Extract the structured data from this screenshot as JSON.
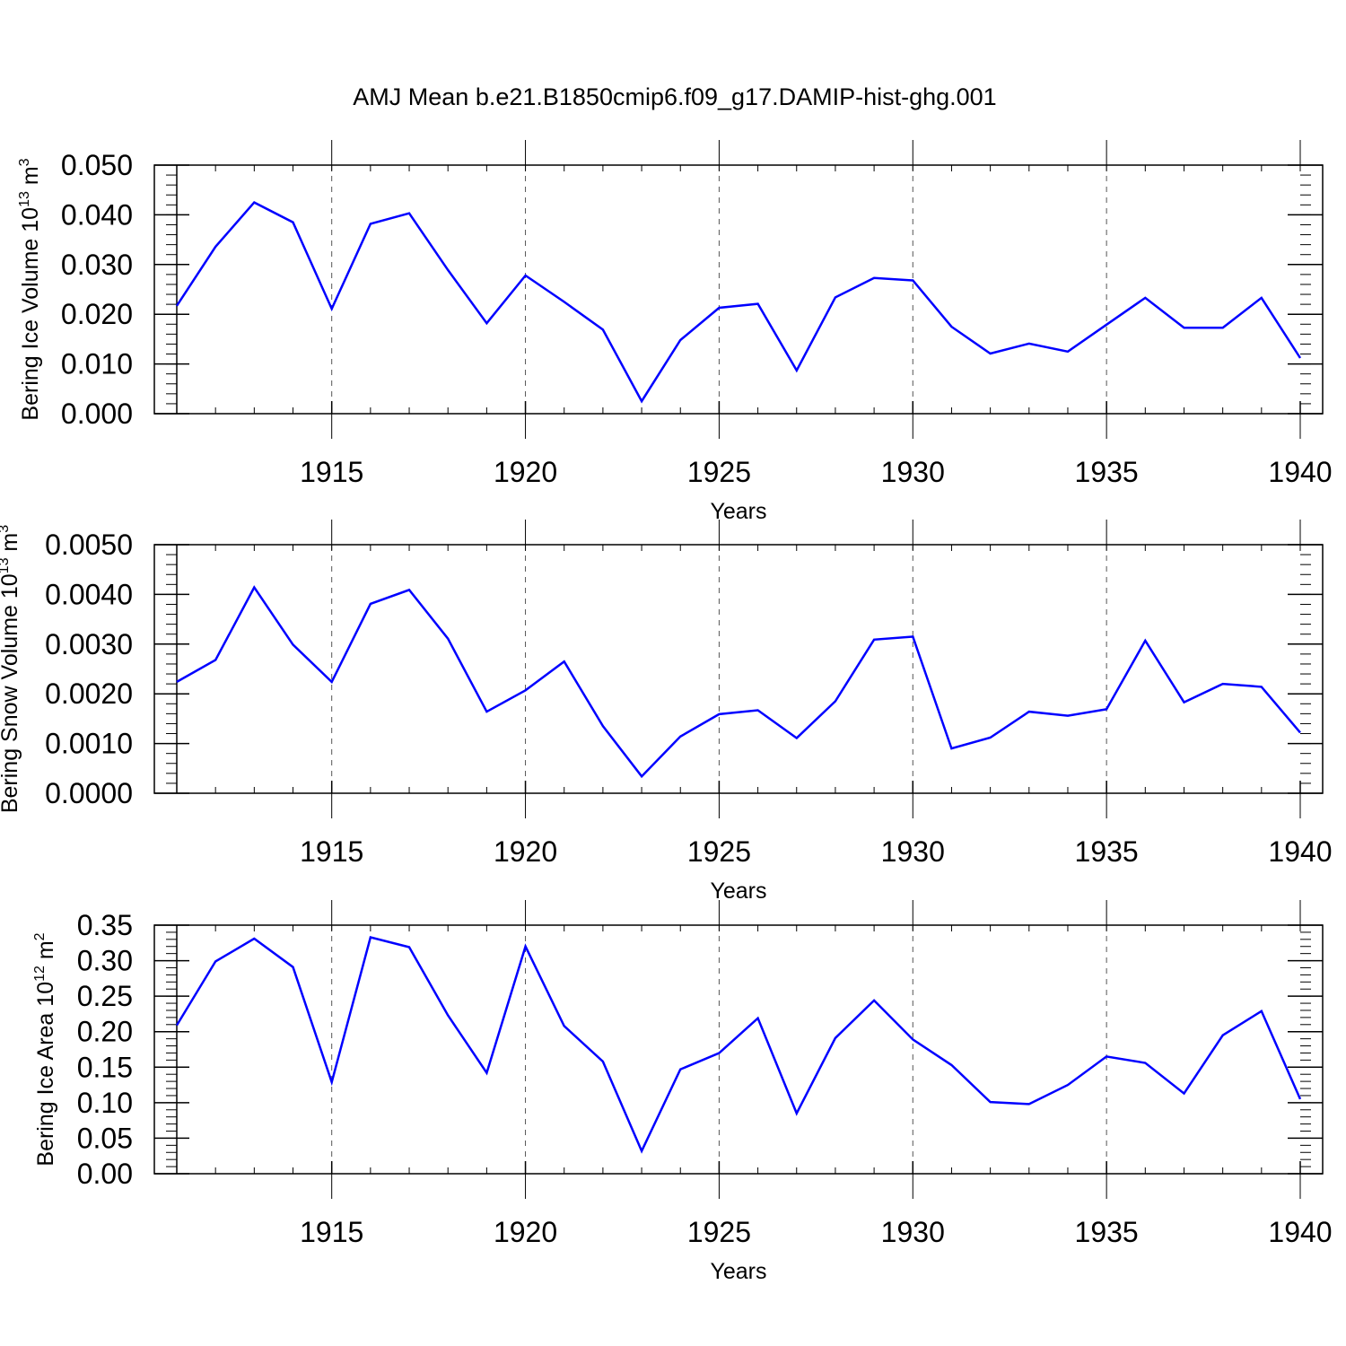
{
  "title": "AMJ Mean b.e21.B1850cmip6.f09_g17.DAMIP-hist-ghg.001",
  "line_color": "#0000ff",
  "chart_data": [
    {
      "type": "line",
      "ylabel": "Bering Ice Volume",
      "yunit_base": "10",
      "yunit_exp": "13",
      "yunit_name": "m",
      "yunit_pow": "3",
      "xlabel": "Years",
      "xlim": [
        1911,
        1940
      ],
      "ylim": [
        0,
        0.05
      ],
      "xticks": [
        "1915",
        "1920",
        "1925",
        "1930",
        "1935",
        "1940"
      ],
      "yticks": [
        "0.000",
        "0.010",
        "0.020",
        "0.030",
        "0.040",
        "0.050"
      ],
      "grid": "vertical dashed at major x ticks",
      "series": [
        {
          "x": [
            1911,
            1912,
            1913,
            1914,
            1915,
            1916,
            1917,
            1918,
            1919,
            1920,
            1921,
            1922,
            1923,
            1924,
            1925,
            1926,
            1927,
            1928,
            1929,
            1930,
            1931,
            1932,
            1933,
            1934,
            1935,
            1936,
            1937,
            1938,
            1939,
            1940
          ],
          "values": [
            0.0217,
            0.0336,
            0.0425,
            0.0385,
            0.0211,
            0.0382,
            0.0403,
            0.0289,
            0.0182,
            0.0278,
            0.0225,
            0.0169,
            0.0025,
            0.0148,
            0.0213,
            0.0221,
            0.0087,
            0.0234,
            0.0273,
            0.0268,
            0.0175,
            0.0121,
            0.0141,
            0.0125,
            0.0179,
            0.0233,
            0.0173,
            0.0173,
            0.0233,
            0.0112
          ]
        }
      ]
    },
    {
      "type": "line",
      "ylabel": "Bering Snow Volume",
      "yunit_base": "10",
      "yunit_exp": "13",
      "yunit_name": "m",
      "yunit_pow": "3",
      "xlabel": "Years",
      "xlim": [
        1911,
        1940
      ],
      "ylim": [
        0,
        0.005
      ],
      "xticks": [
        "1915",
        "1920",
        "1925",
        "1930",
        "1935",
        "1940"
      ],
      "yticks": [
        "0.0000",
        "0.0010",
        "0.0020",
        "0.0030",
        "0.0040",
        "0.0050"
      ],
      "grid": "vertical dashed at major x ticks",
      "series": [
        {
          "x": [
            1911,
            1912,
            1913,
            1914,
            1915,
            1916,
            1917,
            1918,
            1919,
            1920,
            1921,
            1922,
            1923,
            1924,
            1925,
            1926,
            1927,
            1928,
            1929,
            1930,
            1931,
            1932,
            1933,
            1934,
            1935,
            1936,
            1937,
            1938,
            1939,
            1940
          ],
          "values": [
            0.00224,
            0.00268,
            0.00414,
            0.00299,
            0.00224,
            0.00381,
            0.00409,
            0.00311,
            0.00164,
            0.00207,
            0.00265,
            0.00135,
            0.00034,
            0.00114,
            0.00159,
            0.00167,
            0.00111,
            0.00185,
            0.00309,
            0.00315,
            0.0009,
            0.00112,
            0.00164,
            0.00156,
            0.00169,
            0.00307,
            0.00183,
            0.0022,
            0.00214,
            0.00122
          ]
        }
      ]
    },
    {
      "type": "line",
      "ylabel": "Bering Ice Area",
      "yunit_base": "10",
      "yunit_exp": "12",
      "yunit_name": "m",
      "yunit_pow": "2",
      "xlabel": "Years",
      "xlim": [
        1911,
        1940
      ],
      "ylim": [
        0,
        0.35
      ],
      "xticks": [
        "1915",
        "1920",
        "1925",
        "1930",
        "1935",
        "1940"
      ],
      "yticks": [
        "0.00",
        "0.05",
        "0.10",
        "0.15",
        "0.20",
        "0.25",
        "0.30",
        "0.35"
      ],
      "grid": "vertical dashed at major x ticks",
      "series": [
        {
          "x": [
            1911,
            1912,
            1913,
            1914,
            1915,
            1916,
            1917,
            1918,
            1919,
            1920,
            1921,
            1922,
            1923,
            1924,
            1925,
            1926,
            1927,
            1928,
            1929,
            1930,
            1931,
            1932,
            1933,
            1934,
            1935,
            1936,
            1937,
            1938,
            1939,
            1940
          ],
          "values": [
            0.209,
            0.299,
            0.331,
            0.291,
            0.129,
            0.333,
            0.319,
            0.223,
            0.142,
            0.32,
            0.208,
            0.158,
            0.032,
            0.147,
            0.17,
            0.219,
            0.085,
            0.191,
            0.244,
            0.189,
            0.153,
            0.101,
            0.098,
            0.125,
            0.165,
            0.156,
            0.113,
            0.195,
            0.229,
            0.105
          ]
        }
      ]
    }
  ]
}
